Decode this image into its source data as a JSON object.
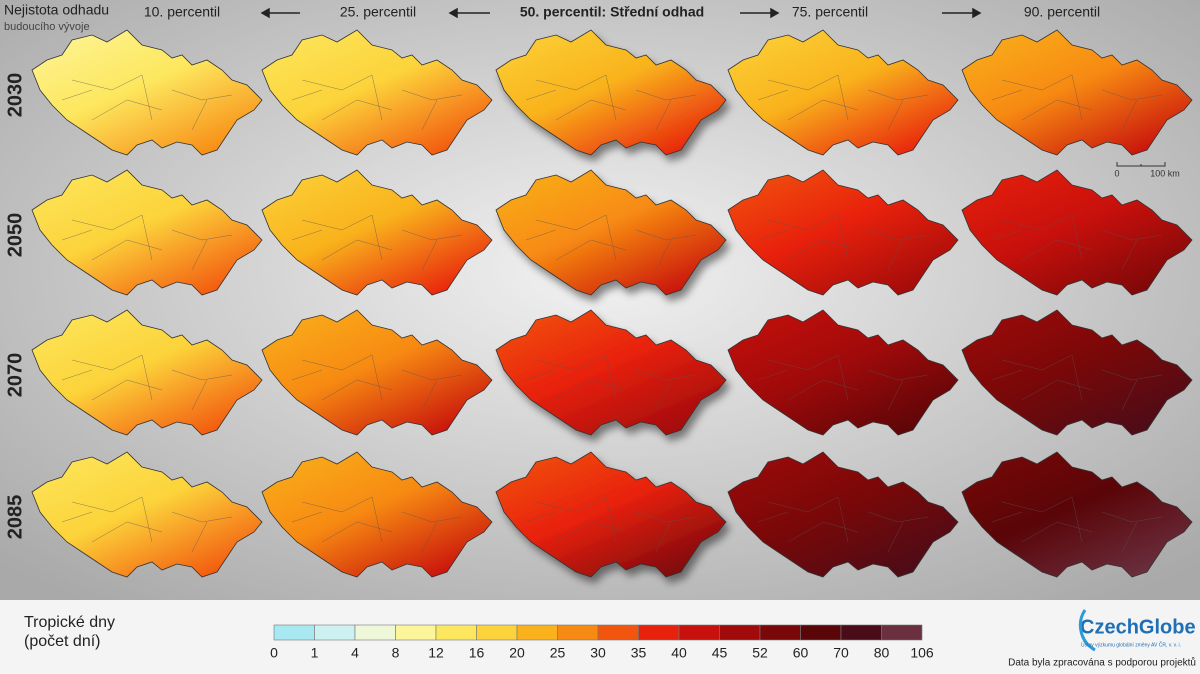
{
  "header": {
    "title": "Nejistota odhadu",
    "subtitle": "budoucího vývoje"
  },
  "columns": [
    "10. percentil",
    "25. percentil",
    "50. percentil: Střední odhad",
    "75. percentil",
    "90. percentil"
  ],
  "rows": [
    "2030",
    "2050",
    "2070",
    "2085"
  ],
  "scale_bar": {
    "start": "0",
    "end": "100 km"
  },
  "legend": {
    "title": "Tropické dny",
    "subtitle": "(počet dní)",
    "ticks": [
      0,
      1,
      4,
      8,
      12,
      16,
      20,
      25,
      30,
      35,
      40,
      45,
      52,
      60,
      70,
      80,
      106
    ],
    "colors": [
      "#a8e8f0",
      "#cdf0f0",
      "#eef8d8",
      "#fdf59a",
      "#fde75e",
      "#fcd33a",
      "#f9b21c",
      "#f78a12",
      "#f2560e",
      "#e8210c",
      "#c8100c",
      "#a00a0a",
      "#7a0808",
      "#5a0508",
      "#4a0c18",
      "#6a3040"
    ]
  },
  "logo": {
    "name": "CzechGlobe",
    "subtitle": "Ústav výzkumu globální změny AV ČR, v. v. i."
  },
  "footer": {
    "note": "Data byla zpracována s podporou projektů"
  }
}
